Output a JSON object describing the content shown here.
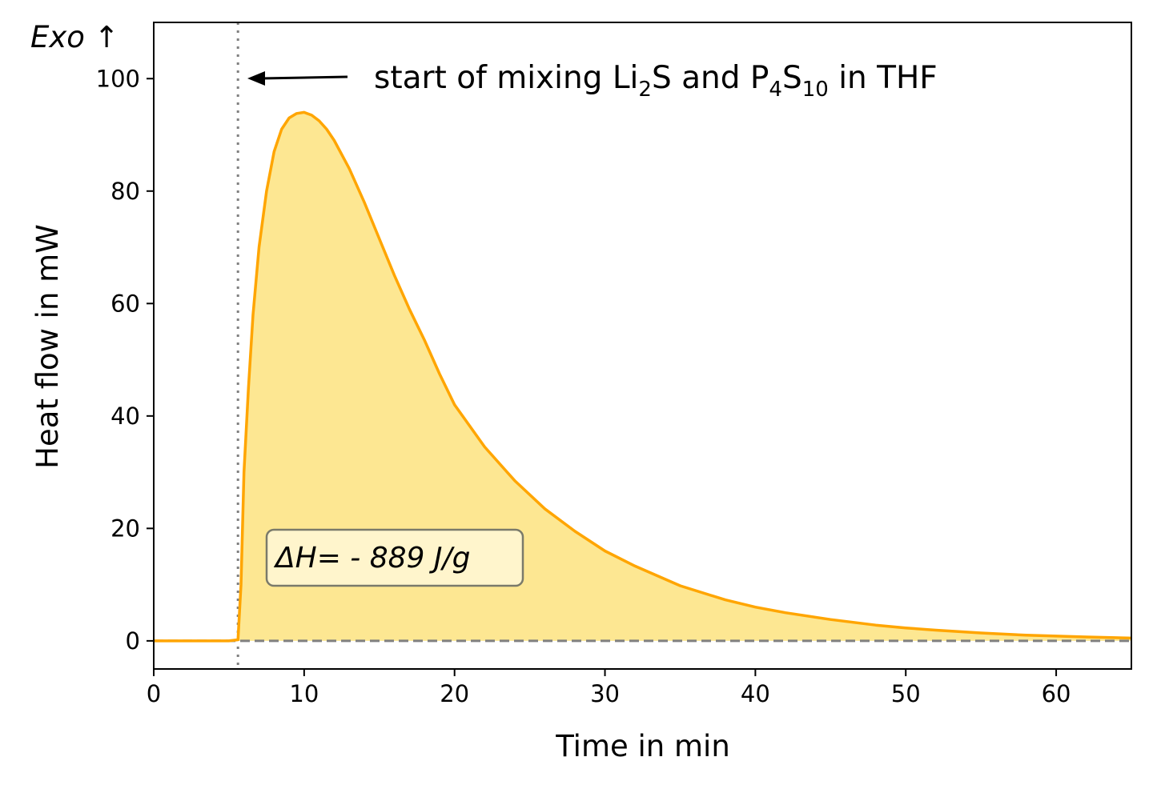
{
  "chart_data": {
    "type": "area",
    "xlabel": "Time in min",
    "ylabel": "Heat flow in mW",
    "xlim": [
      0,
      65
    ],
    "ylim": [
      -5,
      110
    ],
    "xticks": [
      0,
      10,
      20,
      30,
      40,
      50,
      60
    ],
    "yticks": [
      0,
      20,
      40,
      60,
      80,
      100
    ],
    "grid": false,
    "legend": "none",
    "series": [
      {
        "color": "#ffa500",
        "fill_color": "#fde792",
        "x": [
          0,
          5.0,
          5.6,
          5.8,
          6.0,
          6.3,
          6.6,
          7.0,
          7.5,
          8.0,
          8.5,
          9.0,
          9.5,
          10.0,
          10.5,
          11.0,
          11.5,
          12.0,
          13.0,
          14.0,
          15.0,
          16.0,
          17.0,
          18.0,
          19.0,
          20.0,
          22.0,
          24.0,
          26.0,
          28.0,
          30.0,
          32.0,
          35.0,
          38.0,
          40.0,
          42.0,
          45.0,
          48.0,
          50.0,
          52.0,
          55.0,
          58.0,
          60.0,
          62.0,
          65.0
        ],
        "values": [
          0,
          0,
          0.2,
          10,
          30,
          45,
          58,
          70,
          80,
          87,
          91,
          93,
          93.8,
          94,
          93.5,
          92.5,
          91,
          89,
          84,
          78,
          71.5,
          65,
          59,
          53.5,
          47.5,
          42,
          34.5,
          28.5,
          23.5,
          19.5,
          16,
          13.3,
          9.8,
          7.3,
          6,
          5,
          3.8,
          2.8,
          2.3,
          1.9,
          1.4,
          1.0,
          0.85,
          0.7,
          0.5
        ]
      }
    ],
    "reference_lines": [
      {
        "orientation": "vertical",
        "x": 5.6,
        "style": "dotted",
        "color": "#808080"
      },
      {
        "orientation": "horizontal",
        "y": 0,
        "style": "dashed",
        "color": "#808080"
      }
    ],
    "annotations": {
      "exo": "Exo ↑",
      "mixing_prefix": "start of mixing Li",
      "mixing_sub1": "2",
      "mixing_mid": "S and P",
      "mixing_sub2": "4",
      "mixing_mid2": "S",
      "mixing_sub3": "10",
      "mixing_suffix": " in THF",
      "enthalpy": "ΔH= - 889 J/g"
    }
  }
}
